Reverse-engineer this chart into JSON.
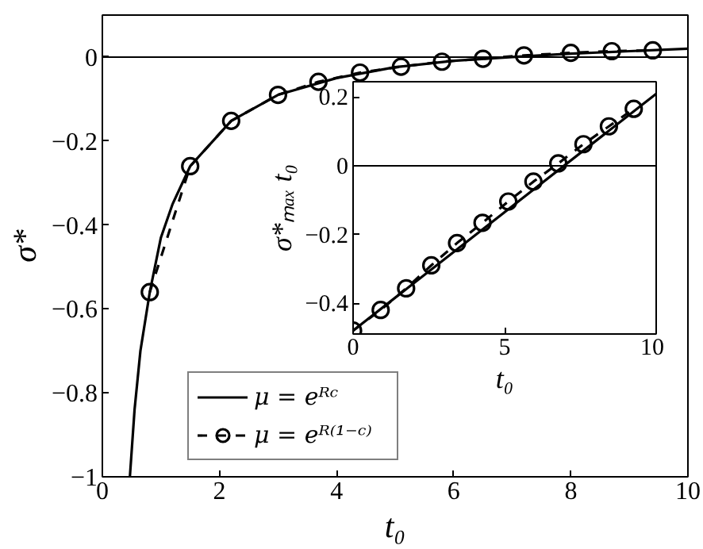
{
  "chart_data": [
    {
      "type": "line",
      "xlabel": "t₀",
      "ylabel": "σ*",
      "xlim": [
        0,
        10
      ],
      "ylim": [
        -1,
        0.1
      ],
      "xticks": [
        {
          "value": 0,
          "label": "0"
        },
        2,
        4,
        6,
        8,
        10
      ],
      "yticks": [
        {
          "value": -1,
          "label": "−1"
        },
        {
          "value": -0.8,
          "label": "−0.8"
        },
        {
          "value": -0.6,
          "label": "−0.6"
        },
        {
          "value": -0.4,
          "label": "−0.4"
        },
        {
          "value": -0.2,
          "label": "−0.2"
        },
        {
          "value": 0,
          "label": "0"
        }
      ],
      "grid": false,
      "legend": "bottom left",
      "ref_lines": [
        {
          "axis": "y",
          "value": 0,
          "color": "#000000"
        }
      ],
      "series": [
        {
          "name": "μ = eᴿᶜ",
          "color": "#000000",
          "marker": "none",
          "line_style": "solid",
          "x": [
            0.47,
            0.55,
            0.65,
            0.81,
            1.0,
            1.2,
            1.5,
            2.2,
            3.0,
            4.0,
            5.0,
            6.0,
            7.0,
            8.0,
            9.0,
            10.0
          ],
          "values": [
            -1,
            -0.84,
            -0.7,
            -0.56,
            -0.43,
            -0.35,
            -0.26,
            -0.152,
            -0.09,
            -0.05,
            -0.024,
            -0.009,
            0.0,
            0.008,
            0.014,
            0.02
          ]
        },
        {
          "name": "μ = eᴿ⁽¹⁻ᶜ⁾",
          "color": "#000000",
          "marker": "circle",
          "line_style": "dashed",
          "x": [
            0.81,
            1.5,
            2.2,
            3.0,
            3.69,
            4.4,
            5.1,
            5.8,
            6.5,
            7.2,
            8.0,
            8.7,
            9.4
          ],
          "values": [
            -0.56,
            -0.26,
            -0.152,
            -0.09,
            -0.059,
            -0.037,
            -0.023,
            -0.011,
            -0.004,
            0.004,
            0.01,
            0.014,
            0.016
          ]
        }
      ]
    },
    {
      "type": "line",
      "xlabel": "t₀",
      "ylabel": "σ*ₘₐₓ t₀",
      "xlim": [
        0,
        10
      ],
      "ylim": [
        -0.49,
        0.245
      ],
      "xticks": [
        0,
        5,
        10
      ],
      "yticks": [
        {
          "value": -0.4,
          "label": "−0.4"
        },
        {
          "value": -0.2,
          "label": "−0.2"
        },
        {
          "value": 0,
          "label": "0"
        },
        0.2
      ],
      "grid": false,
      "ref_lines": [
        {
          "axis": "y",
          "value": 0,
          "color": "#000000"
        }
      ],
      "series": [
        {
          "color": "#000000",
          "line_style": "solid",
          "x": [
            0,
            10
          ],
          "values": [
            -0.48,
            0.21
          ]
        },
        {
          "color": "#000000",
          "marker": "circle",
          "line_style": "dashed",
          "x": [
            0,
            0.91,
            1.75,
            2.58,
            3.43,
            4.27,
            5.12,
            5.95,
            6.77,
            7.6,
            8.44,
            9.26
          ],
          "values": [
            -0.48,
            -0.42,
            -0.357,
            -0.29,
            -0.225,
            -0.166,
            -0.104,
            -0.046,
            0.007,
            0.063,
            0.115,
            0.166
          ]
        }
      ]
    }
  ]
}
